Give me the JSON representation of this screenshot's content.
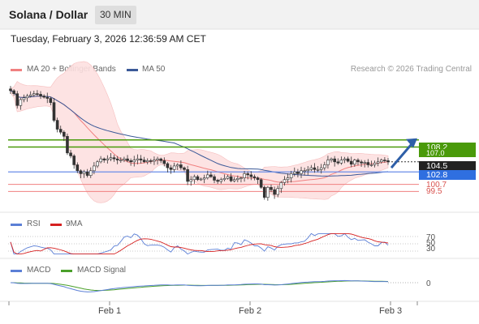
{
  "header": {
    "title": "Solana / Dollar",
    "interval": "30 MIN",
    "timestamp": "Tuesday, February 3, 2026 12:36:59 AM CET"
  },
  "legend": {
    "ma20": "MA 20 + Bollinger Bands",
    "ma50": "MA 50",
    "credit": "Research © 2026 Trading Central",
    "rsi": "RSI",
    "rsi_ma": "9MA",
    "macd": "MACD",
    "macd_signal": "MACD Signal"
  },
  "colors": {
    "candle": "#333333",
    "ma20": "#f08080",
    "band_fill": "#fde0e0",
    "ma50": "#3b5998",
    "resistance": "#4a9a0a",
    "support": "#6a8ee8",
    "support_weak": "#f08080",
    "price_tag": "#222222",
    "rsi": "#5b7fd6",
    "rsi_ma": "#d62020",
    "macd": "#5b7fd6",
    "macd_signal": "#4aa02a",
    "arrow": "#2e5fa8"
  },
  "levels": {
    "r2_label": "108.2",
    "r1_label": "107.0",
    "last_label": "104.5",
    "s1_label": "102.8",
    "s2_label": "100.7",
    "s3_label": "99.5"
  },
  "chart_data": [
    {
      "type": "candlestick",
      "title": "Solana / Dollar",
      "interval": "30 MIN",
      "x_ticks": [
        "Feb 1",
        "Feb 2",
        "Feb 3"
      ],
      "ylim": [
        96,
        118
      ],
      "closes": [
        116.5,
        116,
        114,
        115,
        115.3,
        115.6,
        115.8,
        116,
        115.9,
        115.6,
        115.4,
        115.2,
        114.5,
        111.5,
        110,
        109.5,
        108.8,
        106,
        105.5,
        104,
        103,
        102.5,
        102.8,
        102.2,
        103,
        103.8,
        104.5,
        105,
        104.8,
        105,
        105.2,
        105,
        104.8,
        104.8,
        105,
        104.7,
        104.5,
        104.8,
        105,
        104.8,
        104.5,
        104.7,
        104.6,
        104.8,
        105,
        104.7,
        104.2,
        103.5,
        103.2,
        103.8,
        104,
        103.5,
        103.2,
        101.2,
        101.5,
        102,
        101.5,
        101.6,
        101.8,
        102.3,
        102,
        101.4,
        101.2,
        101.5,
        101.7,
        102,
        101.3,
        101.5,
        101.7,
        101.8,
        102.5,
        102.3,
        102,
        101.8,
        101.5,
        100.2,
        98.5,
        100.2,
        99.8,
        99,
        100,
        101,
        101.5,
        101.8,
        102.5,
        102.8,
        102.5,
        103,
        103,
        103.2,
        103.5,
        103.2,
        103.2,
        103.5,
        104,
        104.8,
        105,
        104.5,
        104.3,
        104.8,
        105,
        104.6,
        104.1,
        104.8,
        104.5,
        104.3,
        104.4,
        104,
        104,
        104.3,
        104.5,
        104.8,
        104.7,
        104.5
      ],
      "resistance": [
        108.2,
        107.0
      ],
      "support": [
        102.8,
        100.7,
        99.5
      ],
      "last_price": 104.5,
      "series": [
        {
          "name": "MA 20 + Bollinger Bands"
        },
        {
          "name": "MA 50"
        }
      ]
    },
    {
      "type": "line",
      "indicator": "RSI",
      "levels": [
        "70",
        "50",
        "30"
      ],
      "series": [
        {
          "name": "RSI"
        },
        {
          "name": "9MA"
        }
      ]
    },
    {
      "type": "line",
      "indicator": "MACD",
      "zero_label": "0",
      "series": [
        {
          "name": "MACD"
        },
        {
          "name": "MACD Signal"
        }
      ]
    }
  ]
}
